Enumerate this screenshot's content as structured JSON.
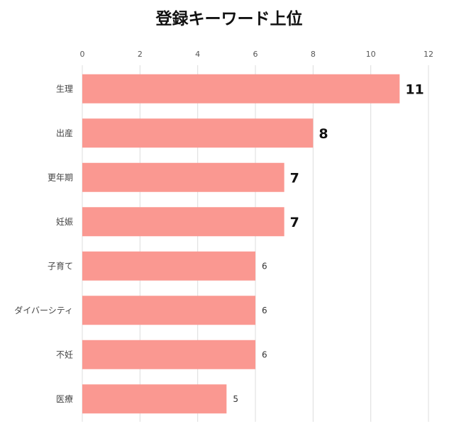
{
  "chart_data": {
    "type": "bar",
    "orientation": "horizontal",
    "title": "登録キーワード上位",
    "categories": [
      "生理",
      "出産",
      "更年期",
      "妊娠",
      "子育て",
      "ダイバーシティ",
      "不妊",
      "医療"
    ],
    "values": [
      11,
      8,
      7,
      7,
      6,
      6,
      6,
      5
    ],
    "xlim": [
      0,
      12
    ],
    "x_ticks": [
      0,
      2,
      4,
      6,
      8,
      10,
      12
    ],
    "x_ticks_position": "top",
    "grid": true,
    "bar_color": "#fa9891",
    "highlighted_labels": [
      true,
      true,
      true,
      true,
      false,
      false,
      false,
      false
    ]
  }
}
